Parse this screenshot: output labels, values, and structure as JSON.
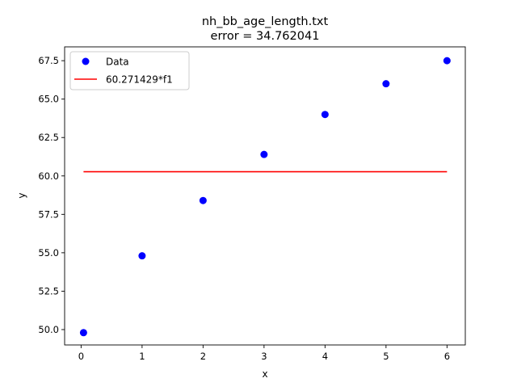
{
  "chart_data": {
    "type": "scatter",
    "title": "nh_bb_age_length.txt",
    "subtitle": "error  = 34.762041",
    "xlabel": "x",
    "ylabel": "y",
    "xlim": [
      -0.27,
      6.3
    ],
    "ylim": [
      49.0,
      68.4
    ],
    "xticks": [
      {
        "value": 0,
        "label": "0"
      },
      {
        "value": 1,
        "label": "1"
      },
      {
        "value": 2,
        "label": "2"
      },
      {
        "value": 3,
        "label": "3"
      },
      {
        "value": 4,
        "label": "4"
      },
      {
        "value": 5,
        "label": "5"
      },
      {
        "value": 6,
        "label": "6"
      }
    ],
    "yticks": [
      {
        "value": 50.0,
        "label": "50.0"
      },
      {
        "value": 52.5,
        "label": "52.5"
      },
      {
        "value": 55.0,
        "label": "55.0"
      },
      {
        "value": 57.5,
        "label": "57.5"
      },
      {
        "value": 60.0,
        "label": "60.0"
      },
      {
        "value": 62.5,
        "label": "62.5"
      },
      {
        "value": 65.0,
        "label": "65.0"
      },
      {
        "value": 67.5,
        "label": "67.5"
      }
    ],
    "grid": false,
    "legend_position": "top-left",
    "series": [
      {
        "name": "Data",
        "kind": "scatter",
        "color": "#0000ff",
        "x": [
          0.04,
          1,
          2,
          3,
          4,
          5,
          6
        ],
        "y": [
          49.8,
          54.8,
          58.4,
          61.4,
          64.0,
          66.0,
          67.5
        ]
      },
      {
        "name": "60.271429*f1",
        "kind": "line",
        "color": "#ff0000",
        "x": [
          0.04,
          6
        ],
        "y": [
          60.271429,
          60.271429
        ]
      }
    ]
  }
}
